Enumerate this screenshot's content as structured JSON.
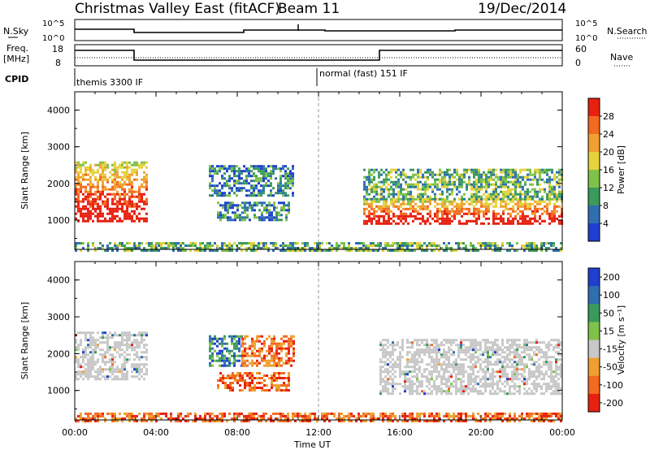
{
  "header": {
    "title": "Christmas Valley East (fitACF)",
    "beam": "Beam 11",
    "date": "19/Dec/2014"
  },
  "strips": {
    "nsky_label": "N.Sky",
    "nsky_ticks": [
      "10^5",
      "10^0"
    ],
    "nsearch_label": "N.Search",
    "nsearch_ticks": [
      "10^5",
      "10^0"
    ],
    "freq_label_1": "Freq.",
    "freq_label_2": "[MHz]",
    "freq_ticks": [
      "18",
      "8"
    ],
    "nave_label": "Nave",
    "nave_ticks": [
      "60",
      "0"
    ],
    "cpid_label": "CPID",
    "cpid_1": "themis 3300 IF",
    "cpid_2": "normal (fast) 151 IF"
  },
  "chart_data": [
    {
      "type": "heatmap",
      "name": "Power",
      "ylabel": "Slant Range [km]",
      "y_ticks": [
        1000,
        2000,
        3000,
        4000
      ],
      "ylim": [
        200,
        4500
      ],
      "x_range_hours": [
        0,
        24
      ],
      "colorbar": {
        "label": "Power [dB]",
        "ticks": [
          4,
          8,
          12,
          16,
          20,
          24,
          28
        ],
        "colors": [
          "#1f3fd0",
          "#2e6fb0",
          "#3a9a5c",
          "#7fc24a",
          "#e6d23a",
          "#f0a030",
          "#f26a20",
          "#e82010"
        ]
      },
      "regions": [
        {
          "t0": 0.0,
          "t1": 3.6,
          "r0": 1000,
          "r1": 2600,
          "level": "high"
        },
        {
          "t0": 6.6,
          "t1": 10.8,
          "r0": 1700,
          "r1": 2500,
          "level": "low"
        },
        {
          "t0": 7.0,
          "t1": 10.5,
          "r0": 1000,
          "r1": 1500,
          "level": "low"
        },
        {
          "t0": 14.2,
          "t1": 24.0,
          "r0": 900,
          "r1": 1600,
          "level": "high"
        },
        {
          "t0": 14.2,
          "t1": 24.0,
          "r0": 1600,
          "r1": 2400,
          "level": "mid"
        },
        {
          "t0": 0.0,
          "t1": 24.0,
          "r0": 200,
          "r1": 400,
          "level": "mid"
        }
      ]
    },
    {
      "type": "heatmap",
      "name": "Velocity",
      "ylabel": "Slant Range [km]",
      "y_ticks": [
        1000,
        2000,
        3000,
        4000
      ],
      "ylim": [
        200,
        4500
      ],
      "x_range_hours": [
        0,
        24
      ],
      "colorbar": {
        "label": "Velocity [m s⁻¹]",
        "ticks": [
          200,
          100,
          50,
          15,
          -15,
          -50,
          -100,
          -200
        ],
        "colors": [
          "#1f3fd0",
          "#2e6fb0",
          "#3a9a5c",
          "#7fc24a",
          "#c8c8c8",
          "#f0a030",
          "#f26a20",
          "#e82010"
        ]
      },
      "regions": [
        {
          "t0": 0.0,
          "t1": 3.6,
          "r0": 1300,
          "r1": 2600,
          "level": "ground"
        },
        {
          "t0": 6.6,
          "t1": 8.2,
          "r0": 1700,
          "r1": 2500,
          "level": "pos"
        },
        {
          "t0": 8.2,
          "t1": 10.8,
          "r0": 1700,
          "r1": 2500,
          "level": "neg"
        },
        {
          "t0": 7.0,
          "t1": 10.5,
          "r0": 1000,
          "r1": 1500,
          "level": "neg"
        },
        {
          "t0": 15.0,
          "t1": 24.0,
          "r0": 900,
          "r1": 2400,
          "level": "ground"
        },
        {
          "t0": 0.0,
          "t1": 24.0,
          "r0": 200,
          "r1": 400,
          "level": "neg"
        }
      ]
    }
  ],
  "x_axis": {
    "ticks": [
      "00:00",
      "04:00",
      "08:00",
      "12:00",
      "16:00",
      "20:00",
      "00:00"
    ],
    "label": "Time UT"
  }
}
